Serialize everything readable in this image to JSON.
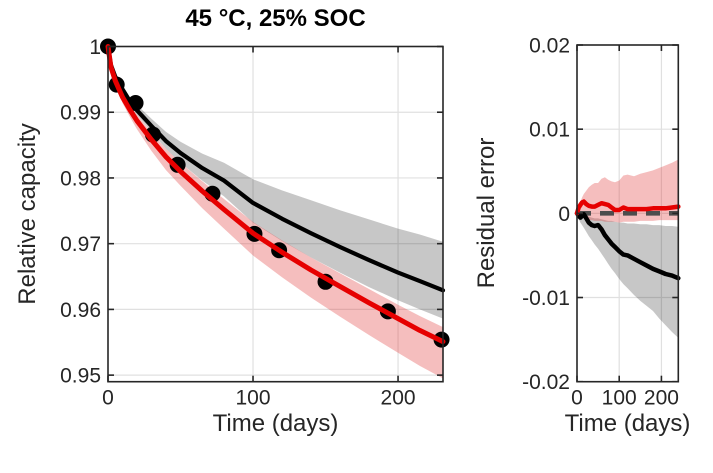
{
  "figure_bg": "#ffffff",
  "colors": {
    "red_line": "#e60000",
    "black_line": "#000000",
    "marker": "#000000",
    "pink_band": "rgba(224,58,58,0.33)",
    "gray_band": "rgba(0,0,0,0.22)",
    "zero_dash": "#4d4d4d",
    "grid": "#e0e0e0",
    "axis": "#262626",
    "tick_text": "#262626"
  },
  "chart_data": [
    {
      "name": "capacity",
      "type": "line",
      "title": "45 °C, 25% SOC",
      "xlabel": "Time (days)",
      "ylabel": "Relative capacity",
      "grid": true,
      "legend": "none",
      "xlim": [
        0,
        231
      ],
      "ylim": [
        0.949,
        1.0
      ],
      "xticks": {
        "values": [
          0,
          100,
          200
        ],
        "labels": [
          "0",
          "100",
          "200"
        ]
      },
      "yticks": {
        "values": [
          1.0,
          0.99,
          0.98,
          0.97,
          0.96,
          0.95
        ],
        "labels": [
          "1",
          "0.99",
          "0.98",
          "0.97",
          "0.96",
          "0.95"
        ]
      },
      "scatter": {
        "name": "measured-capacity-points",
        "t": [
          0,
          6,
          19,
          31,
          48,
          72,
          101,
          118,
          150,
          193,
          230
        ],
        "y": [
          1.0,
          0.9942,
          0.9914,
          0.9866,
          0.982,
          0.9776,
          0.9715,
          0.969,
          0.9642,
          0.9597,
          0.9554
        ]
      },
      "series": [
        {
          "name": "black-model-fit",
          "color_key": "black_line",
          "width": 4.2,
          "t": [
            0,
            2,
            5,
            10,
            15,
            20,
            30,
            40,
            50,
            65,
            80,
            100,
            120,
            140,
            160,
            180,
            200,
            215,
            231
          ],
          "y": [
            1.0,
            0.9972,
            0.9954,
            0.9935,
            0.9917,
            0.9903,
            0.9879,
            0.9856,
            0.9838,
            0.9815,
            0.9796,
            0.9762,
            0.9738,
            0.9716,
            0.9695,
            0.9675,
            0.9656,
            0.9643,
            0.9629
          ],
          "band": {
            "fill_key": "gray_band",
            "upper": [
              1.0,
              0.9974,
              0.9957,
              0.994,
              0.9923,
              0.9911,
              0.989,
              0.987,
              0.9855,
              0.9837,
              0.9823,
              0.9798,
              0.9781,
              0.9766,
              0.9751,
              0.9737,
              0.9723,
              0.9714,
              0.9703
            ],
            "lower": [
              0.9999,
              0.997,
              0.9951,
              0.9931,
              0.9912,
              0.9896,
              0.987,
              0.9844,
              0.9823,
              0.9796,
              0.9772,
              0.9732,
              0.9704,
              0.9679,
              0.9656,
              0.9634,
              0.9614,
              0.96,
              0.9586
            ]
          }
        },
        {
          "name": "red-model-fit",
          "color_key": "red_line",
          "width": 5,
          "t": [
            0,
            2,
            5,
            10,
            15,
            20,
            30,
            40,
            50,
            65,
            80,
            100,
            120,
            140,
            160,
            180,
            200,
            215,
            231
          ],
          "y": [
            1.0,
            0.9969,
            0.9948,
            0.9923,
            0.9904,
            0.9887,
            0.9858,
            0.9832,
            0.981,
            0.978,
            0.9752,
            0.9716,
            0.9687,
            0.966,
            0.9635,
            0.961,
            0.9586,
            0.9568,
            0.9551
          ],
          "band": {
            "fill_key": "pink_band",
            "upper": [
              1.0,
              0.9972,
              0.9953,
              0.993,
              0.9912,
              0.9896,
              0.9869,
              0.9844,
              0.9823,
              0.9795,
              0.9768,
              0.9733,
              0.9705,
              0.9679,
              0.9655,
              0.9631,
              0.9607,
              0.959,
              0.9573
            ],
            "lower": [
              0.9999,
              0.9965,
              0.9942,
              0.9914,
              0.9893,
              0.9874,
              0.9841,
              0.9812,
              0.9788,
              0.9754,
              0.9723,
              0.9682,
              0.9649,
              0.9618,
              0.9589,
              0.9561,
              0.9534,
              0.9514,
              0.9495
            ]
          }
        }
      ]
    },
    {
      "name": "residual",
      "type": "line",
      "title": "",
      "xlabel": "Time (days)",
      "ylabel": "Residual error",
      "grid": true,
      "legend": "none",
      "zero_line": true,
      "xlim": [
        0,
        240
      ],
      "ylim": [
        -0.02,
        0.02
      ],
      "xticks": {
        "values": [
          0,
          100,
          200
        ],
        "labels": [
          "0",
          "100",
          "200"
        ]
      },
      "yticks": {
        "values": [
          0.02,
          0.01,
          0,
          -0.01,
          -0.02
        ],
        "labels": [
          "0.02",
          "0.01",
          "0",
          "-0.01",
          "-0.02"
        ]
      },
      "series": [
        {
          "name": "black-model-residual",
          "color_key": "black_line",
          "width": 4.5,
          "t": [
            0,
            4,
            8,
            12,
            16,
            22,
            28,
            35,
            42,
            50,
            58,
            66,
            74,
            82,
            90,
            100,
            110,
            120,
            135,
            150,
            165,
            180,
            195,
            210,
            225,
            240
          ],
          "y": [
            0.0,
            -0.0003,
            -0.0005,
            -0.0003,
            -0.0001,
            -0.0006,
            -0.0011,
            -0.0014,
            -0.0015,
            -0.0014,
            -0.0019,
            -0.0026,
            -0.0031,
            -0.0036,
            -0.004,
            -0.0045,
            -0.0049,
            -0.005,
            -0.0054,
            -0.0058,
            -0.0062,
            -0.0066,
            -0.0069,
            -0.0072,
            -0.0074,
            -0.0077
          ],
          "band": {
            "fill_key": "gray_band",
            "upper": [
              0.0001,
              -0.0001,
              -0.0002,
              -0.0001,
              0.0,
              -0.0002,
              -0.0004,
              -0.0005,
              -0.0006,
              -0.0006,
              -0.0007,
              -0.0008,
              -0.0009,
              -0.0009,
              -0.001,
              -0.0011,
              -0.0011,
              -0.0012,
              -0.0012,
              -0.0013,
              -0.0013,
              -0.0014,
              -0.0014,
              -0.0015,
              -0.0015,
              -0.0016
            ],
            "lower": [
              -0.0001,
              -0.0007,
              -0.0011,
              -0.0014,
              -0.0017,
              -0.0022,
              -0.0027,
              -0.0032,
              -0.0037,
              -0.0042,
              -0.0048,
              -0.0054,
              -0.006,
              -0.0066,
              -0.0071,
              -0.0078,
              -0.0084,
              -0.0089,
              -0.0097,
              -0.0104,
              -0.011,
              -0.0116,
              -0.0125,
              -0.0133,
              -0.0141,
              -0.0148
            ]
          }
        },
        {
          "name": "red-model-residual",
          "color_key": "red_line",
          "width": 4.5,
          "t": [
            0,
            4,
            8,
            12,
            16,
            22,
            28,
            35,
            42,
            50,
            58,
            66,
            74,
            82,
            90,
            100,
            110,
            120,
            135,
            150,
            165,
            180,
            195,
            210,
            225,
            240
          ],
          "y": [
            0.0,
            0.0007,
            0.001,
            0.0013,
            0.0014,
            0.0011,
            0.0009,
            0.0008,
            0.0008,
            0.001,
            0.0012,
            0.0011,
            0.001,
            0.0007,
            0.0004,
            0.0004,
            0.0007,
            0.0005,
            0.0005,
            0.0005,
            0.0005,
            0.0006,
            0.0006,
            0.0006,
            0.0007,
            0.0008
          ],
          "band": {
            "fill_key": "pink_band",
            "upper": [
              0.0002,
              0.0009,
              0.0014,
              0.0019,
              0.0023,
              0.0027,
              0.0031,
              0.0034,
              0.0036,
              0.0036,
              0.0041,
              0.0043,
              0.004,
              0.0038,
              0.0037,
              0.0039,
              0.0045,
              0.0046,
              0.0044,
              0.0047,
              0.0049,
              0.0051,
              0.0054,
              0.0057,
              0.006,
              0.0064
            ],
            "lower": [
              -0.0001,
              -0.0003,
              -0.0004,
              -0.0005,
              -0.0006,
              -0.0007,
              -0.0008,
              -0.0008,
              -0.0009,
              -0.0009,
              -0.0009,
              -0.001,
              -0.001,
              -0.001,
              -0.001,
              -0.0011,
              -0.001,
              -0.001,
              -0.001,
              -0.0009,
              -0.0009,
              -0.0009,
              -0.0008,
              -0.0008,
              -0.0008,
              -0.0008
            ]
          }
        }
      ]
    }
  ]
}
